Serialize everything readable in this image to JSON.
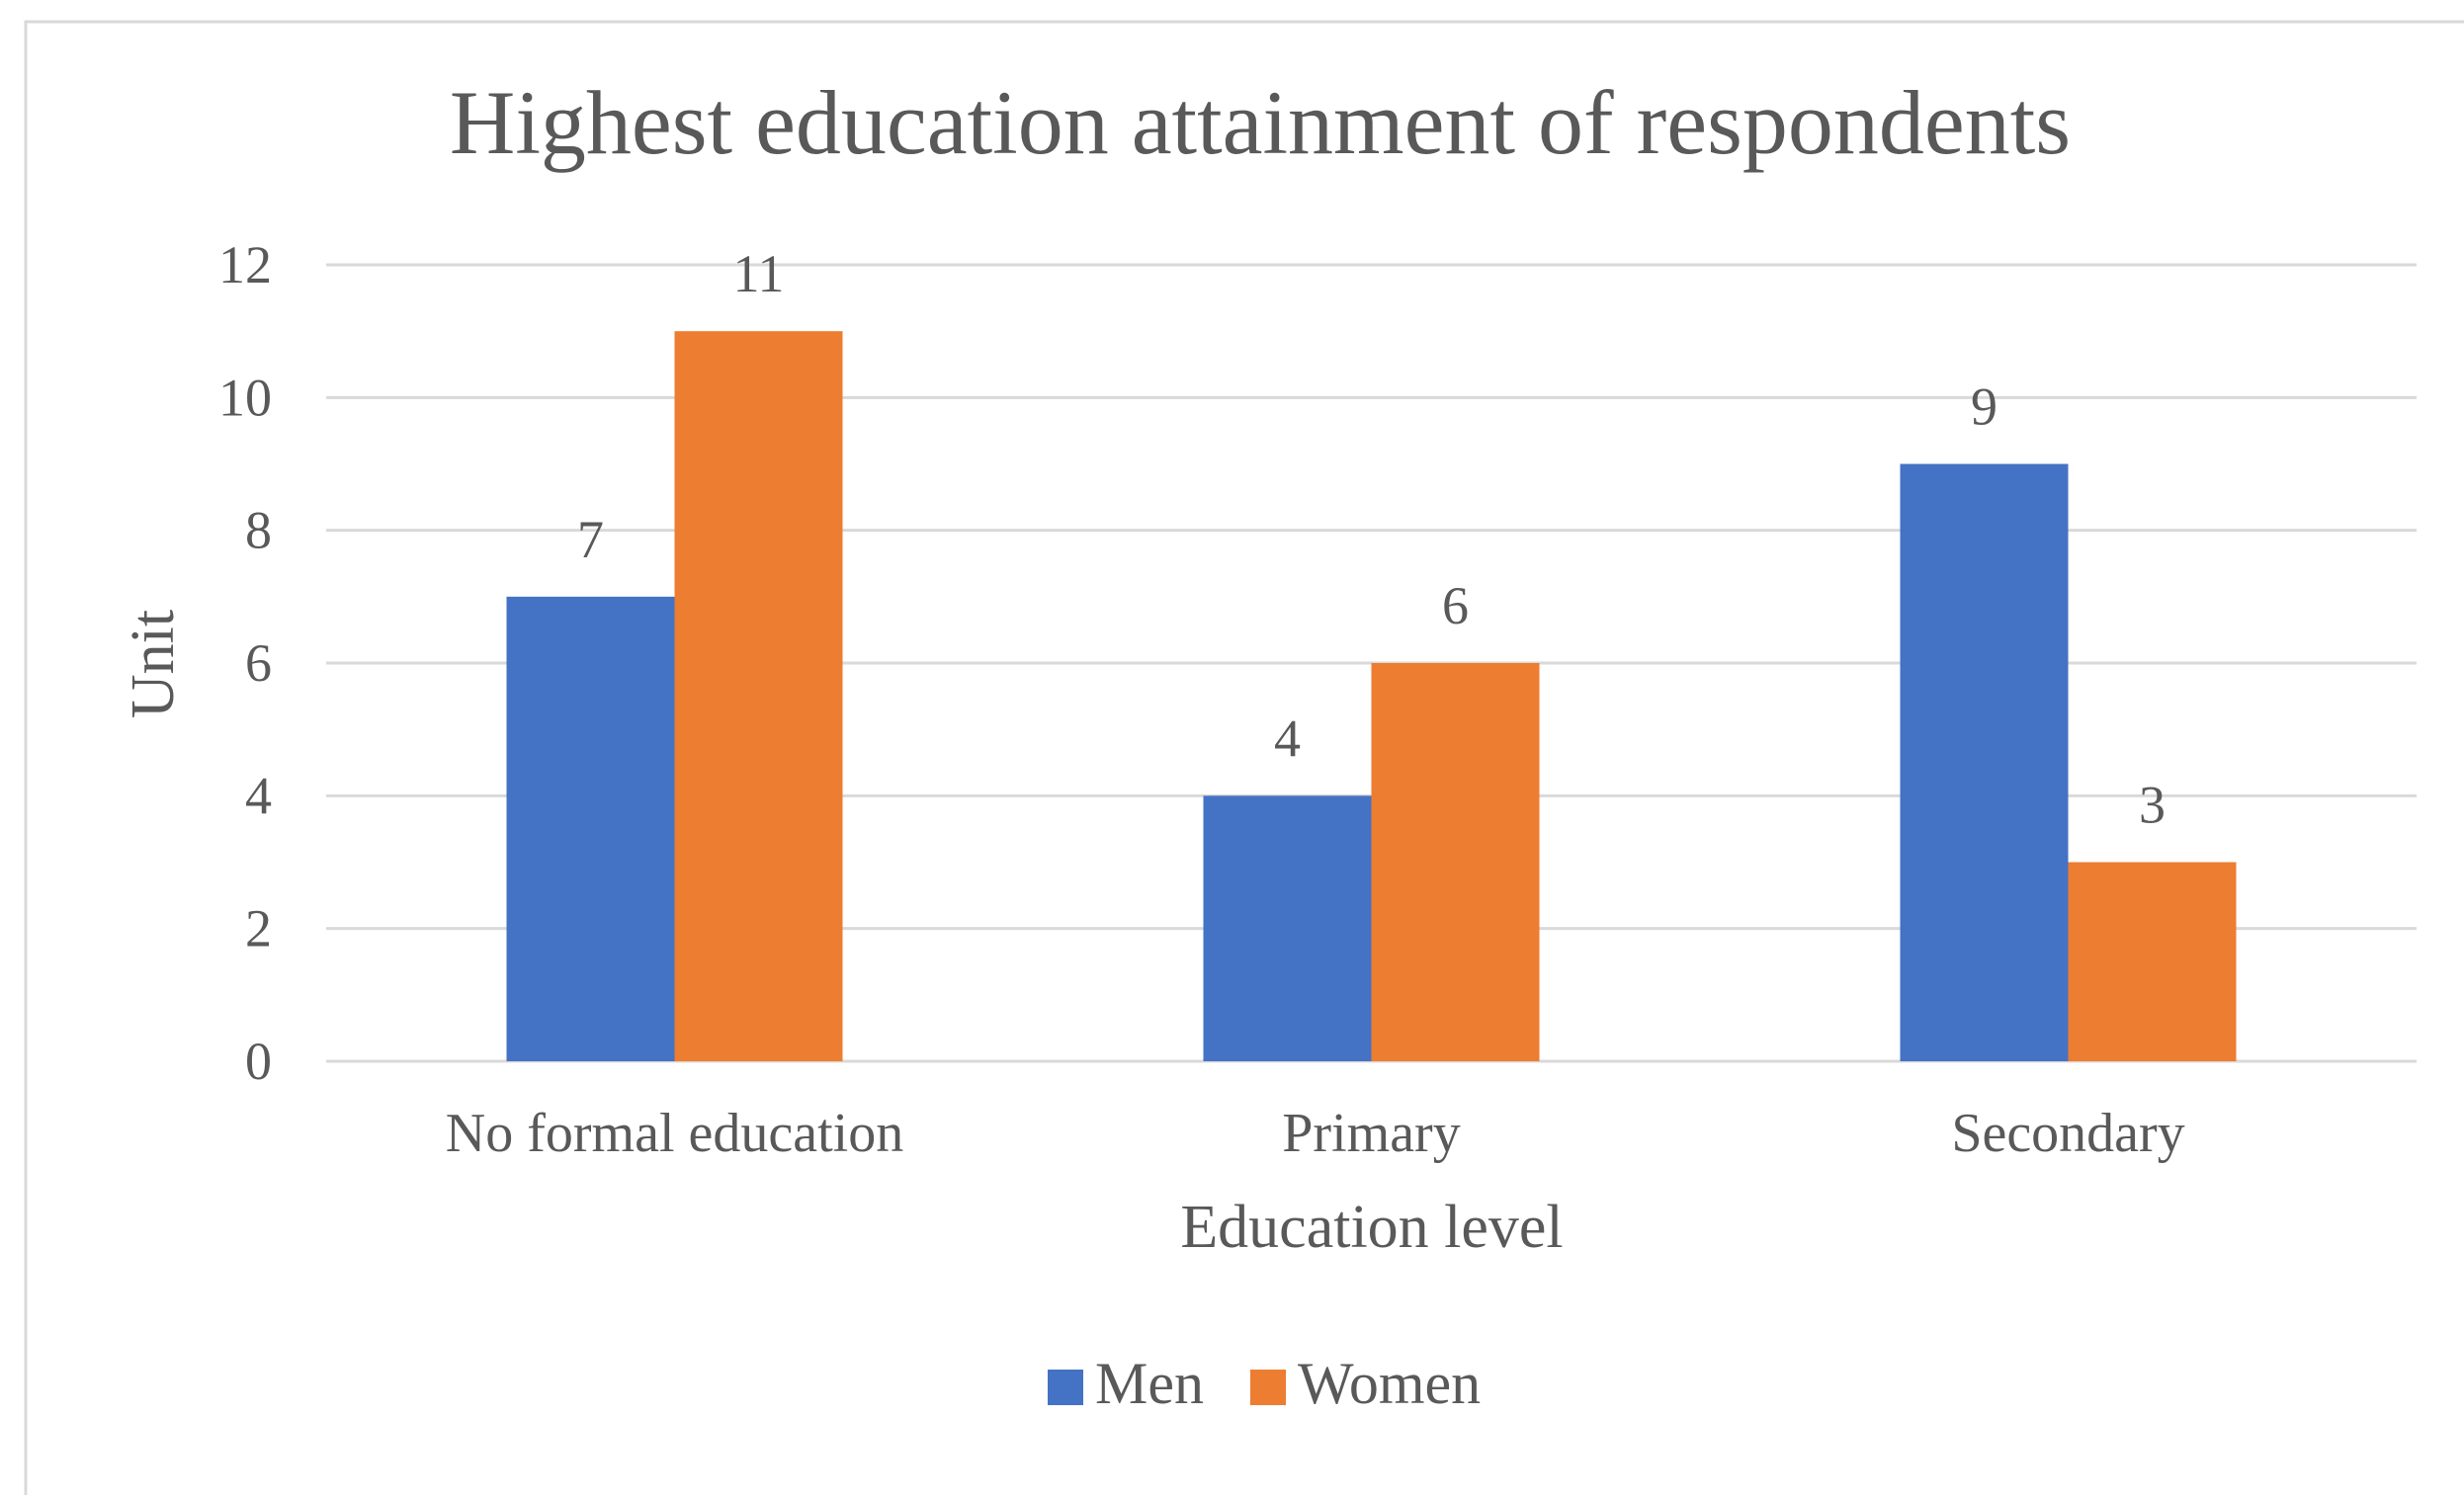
{
  "chart_data": {
    "type": "bar",
    "title": "Highest education attainment of respondents",
    "xlabel": "Education level",
    "ylabel": "Unit",
    "categories": [
      "No formal education",
      "Primary",
      "Secondary"
    ],
    "series": [
      {
        "name": "Men",
        "values": [
          7,
          4,
          9
        ],
        "color": "#4472C4"
      },
      {
        "name": "Women",
        "values": [
          11,
          6,
          3
        ],
        "color": "#ED7D31"
      }
    ],
    "ylim": [
      0,
      12
    ],
    "yticks": [
      0,
      2,
      4,
      6,
      8,
      10,
      12
    ],
    "grid": true,
    "legend": "bottom-center",
    "data_labels": true
  },
  "colors": {
    "grid": "#d9d9d9",
    "text": "#595959",
    "title": "#595959",
    "frame": "#d9d9d9"
  }
}
